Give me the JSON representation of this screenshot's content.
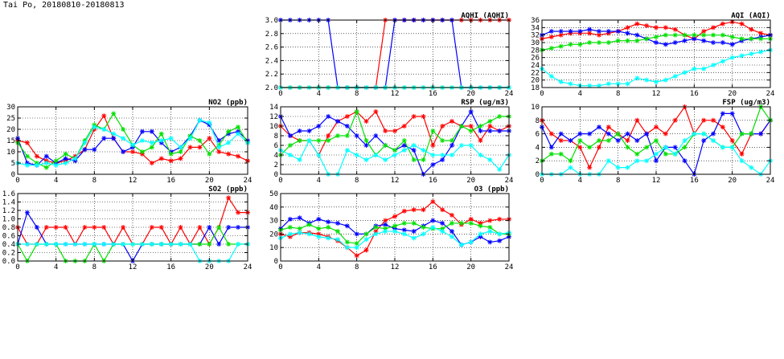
{
  "title": "Tai Po, 20180810-20180813",
  "colors": {
    "red": "#ff0000",
    "blue": "#0000ff",
    "green": "#00e000",
    "cyan": "#00ffff"
  },
  "chart_data": [
    {
      "id": "aqhi",
      "type": "line",
      "title": "AQHI (AQHI)",
      "xlim": [
        0,
        24
      ],
      "ylim": [
        2.0,
        3.0
      ],
      "xticks": [
        0,
        4,
        8,
        12,
        16,
        20,
        24
      ],
      "yticks": [
        2.0,
        2.2,
        2.4,
        2.6,
        2.8,
        3.0
      ],
      "ytick_labels": [
        "2.0",
        "2.2",
        "2.4",
        "2.6",
        "2.8",
        "3.0"
      ],
      "grid": true,
      "series": [
        {
          "color": "#ff0000",
          "values": [
            2,
            2,
            2,
            2,
            2,
            2,
            2,
            2,
            2,
            2,
            2,
            3,
            3,
            3,
            3,
            3,
            3,
            3,
            3,
            3,
            3,
            3,
            3,
            3,
            3
          ]
        },
        {
          "color": "#0000ff",
          "values": [
            3,
            3,
            3,
            3,
            3,
            3,
            2,
            2,
            2,
            2,
            2,
            2,
            3,
            3,
            3,
            3,
            3,
            3,
            3,
            2,
            2,
            2,
            2,
            2,
            2
          ]
        },
        {
          "color": "#00e000",
          "values": [
            2,
            2,
            2,
            2,
            2,
            2,
            2,
            2,
            2,
            2,
            2,
            2,
            2,
            2,
            2,
            2,
            2,
            2,
            2,
            2,
            2,
            2,
            2,
            2,
            2
          ]
        },
        {
          "color": "#00ffff",
          "values": [
            2,
            2,
            2,
            2,
            2,
            2,
            2,
            2,
            2,
            2,
            2,
            2,
            2,
            2,
            2,
            2,
            2,
            2,
            2,
            2,
            2,
            2,
            2,
            2,
            2
          ]
        }
      ]
    },
    {
      "id": "aqi",
      "type": "line",
      "title": "AQI (AQI)",
      "xlim": [
        0,
        24
      ],
      "ylim": [
        18,
        36
      ],
      "xticks": [
        0,
        4,
        8,
        12,
        16,
        20,
        24
      ],
      "yticks": [
        18,
        20,
        22,
        24,
        26,
        28,
        30,
        32,
        34,
        36
      ],
      "ytick_labels": [
        "18",
        "20",
        "22",
        "24",
        "26",
        "28",
        "30",
        "32",
        "34",
        "36"
      ],
      "grid": true,
      "series": [
        {
          "color": "#ff0000",
          "values": [
            31,
            31.5,
            32,
            32.5,
            32.5,
            32.5,
            32,
            32.5,
            33,
            34,
            35,
            34.5,
            34,
            34,
            33.5,
            32,
            31,
            33,
            34,
            35,
            35.5,
            35,
            33.5,
            32.5,
            32
          ]
        },
        {
          "color": "#0000ff",
          "values": [
            32,
            33,
            33,
            33,
            33,
            33.5,
            33,
            33,
            33,
            32.5,
            32,
            31,
            30,
            29.5,
            30,
            30.5,
            31,
            30.5,
            30,
            30,
            29.5,
            30.5,
            31,
            31.5,
            32
          ]
        },
        {
          "color": "#00e000",
          "values": [
            28,
            28.5,
            29,
            29.5,
            29.5,
            30,
            30,
            30,
            30.5,
            30.5,
            30.5,
            31,
            31.5,
            32,
            32,
            32,
            32,
            32,
            32,
            32,
            31.5,
            31,
            31,
            31,
            31
          ]
        },
        {
          "color": "#00ffff",
          "values": [
            23,
            21,
            19.5,
            19,
            18.5,
            18.5,
            18.5,
            19,
            19,
            19,
            20.5,
            20,
            19.5,
            20,
            21,
            22,
            23,
            23,
            24,
            25,
            26,
            26.5,
            27,
            27.5,
            28
          ]
        }
      ]
    },
    {
      "id": "no2",
      "type": "line",
      "title": "NO2 (ppb)",
      "xlim": [
        0,
        24
      ],
      "ylim": [
        0,
        30
      ],
      "xticks": [
        0,
        4,
        8,
        12,
        16,
        20,
        24
      ],
      "yticks": [
        0,
        5,
        10,
        15,
        20,
        25,
        30
      ],
      "ytick_labels": [
        "0",
        "5",
        "10",
        "15",
        "20",
        "25",
        "30"
      ],
      "grid": true,
      "series": [
        {
          "color": "#ff0000",
          "values": [
            15,
            14,
            8,
            6,
            5,
            6,
            8,
            11,
            20,
            26,
            16,
            10,
            10,
            9,
            5,
            7,
            6,
            7,
            12,
            12,
            16,
            10,
            9,
            8,
            6
          ]
        },
        {
          "color": "#0000ff",
          "values": [
            16,
            5,
            4,
            8,
            5,
            7,
            6,
            11,
            11,
            16,
            16,
            10,
            12,
            19,
            19,
            14,
            10,
            12,
            17,
            24,
            22,
            15,
            18,
            19,
            15
          ]
        },
        {
          "color": "#00e000",
          "values": [
            14,
            8,
            5,
            3,
            6,
            9,
            7,
            15,
            22,
            20,
            27,
            20,
            13,
            10,
            12,
            18,
            9,
            10,
            17,
            15,
            9,
            13,
            19,
            21,
            14
          ]
        },
        {
          "color": "#00ffff",
          "values": [
            5,
            4,
            4,
            5,
            4,
            5,
            7,
            14,
            21,
            20,
            18,
            16,
            13,
            15,
            14,
            15,
            16,
            12,
            16,
            24,
            23,
            12,
            14,
            18,
            14
          ]
        }
      ]
    },
    {
      "id": "rsp",
      "type": "line",
      "title": "RSP (ug/m3)",
      "xlim": [
        0,
        24
      ],
      "ylim": [
        0,
        14
      ],
      "xticks": [
        0,
        4,
        8,
        12,
        16,
        20,
        24
      ],
      "yticks": [
        0,
        2,
        4,
        6,
        8,
        10,
        12,
        14
      ],
      "ytick_labels": [
        "0",
        "2",
        "4",
        "6",
        "8",
        "10",
        "12",
        "14"
      ],
      "grid": true,
      "series": [
        {
          "color": "#ff0000",
          "values": [
            10,
            8,
            7,
            7,
            4,
            8,
            11,
            12,
            13,
            11,
            13,
            9,
            9,
            10,
            12,
            12,
            6,
            10,
            11,
            10,
            10,
            7,
            10,
            9,
            10
          ]
        },
        {
          "color": "#0000ff",
          "values": [
            12,
            8,
            9,
            9,
            10,
            12,
            11,
            10,
            8,
            6,
            8,
            6,
            5,
            6,
            5,
            0,
            2,
            3,
            6,
            10,
            13,
            9,
            9,
            9,
            9
          ]
        },
        {
          "color": "#00e000",
          "values": [
            4,
            6,
            7,
            7,
            7,
            7,
            8,
            8,
            13,
            7,
            4,
            6,
            5,
            7,
            3,
            3,
            9,
            7,
            7,
            10,
            9,
            10,
            11,
            12,
            12
          ]
        },
        {
          "color": "#00ffff",
          "values": [
            5,
            4,
            3,
            7,
            4,
            0,
            0,
            5,
            4,
            3,
            4,
            3,
            4,
            5,
            6,
            5,
            4,
            4,
            4,
            6,
            6,
            4,
            3,
            1,
            4
          ]
        }
      ]
    },
    {
      "id": "fsp",
      "type": "line",
      "title": "FSP (ug/m3)",
      "xlim": [
        0,
        24
      ],
      "ylim": [
        0,
        10
      ],
      "xticks": [
        0,
        4,
        8,
        12,
        16,
        20,
        24
      ],
      "yticks": [
        0,
        2,
        4,
        6,
        8,
        10
      ],
      "ytick_labels": [
        "0",
        "2",
        "4",
        "6",
        "8",
        "10"
      ],
      "grid": true,
      "series": [
        {
          "color": "#ff0000",
          "values": [
            8,
            6,
            5,
            5,
            4,
            1,
            4,
            7,
            6,
            5,
            8,
            6,
            7,
            6,
            8,
            10,
            6,
            8,
            8,
            7,
            5,
            3,
            6,
            6,
            8
          ]
        },
        {
          "color": "#0000ff",
          "values": [
            7,
            4,
            6,
            5,
            6,
            6,
            7,
            6,
            5,
            6,
            5,
            6,
            2,
            4,
            4,
            2,
            0,
            5,
            6,
            9,
            9,
            6,
            6,
            6,
            8
          ]
        },
        {
          "color": "#00e000",
          "values": [
            2,
            3,
            3,
            2,
            5,
            4,
            5,
            5,
            6,
            4,
            3,
            4,
            5,
            3,
            3,
            4,
            6,
            6,
            5,
            4,
            4,
            6,
            6,
            10,
            8
          ]
        },
        {
          "color": "#00ffff",
          "values": [
            0,
            0,
            0,
            1,
            0,
            0,
            0,
            2,
            1,
            1,
            2,
            2,
            3,
            4,
            3,
            5,
            6,
            6,
            5,
            4,
            4,
            2,
            1,
            0,
            2
          ]
        }
      ]
    },
    {
      "id": "so2",
      "type": "line",
      "title": "SO2 (ppb)",
      "xlim": [
        0,
        24
      ],
      "ylim": [
        0,
        1.6
      ],
      "xticks": [
        0,
        4,
        8,
        12,
        16,
        20,
        24
      ],
      "yticks": [
        0,
        0.2,
        0.4,
        0.6,
        0.8,
        1.0,
        1.2,
        1.4,
        1.6
      ],
      "ytick_labels": [
        "0.0",
        "0.2",
        "0.4",
        "0.6",
        "0.8",
        "1.0",
        "1.2",
        "1.4",
        "1.6"
      ],
      "grid": true,
      "series": [
        {
          "color": "#ff0000",
          "values": [
            0.8,
            0.4,
            0.4,
            0.8,
            0.8,
            0.8,
            0.4,
            0.8,
            0.8,
            0.8,
            0.4,
            0.8,
            0.4,
            0.4,
            0.8,
            0.8,
            0.4,
            0.8,
            0.4,
            0.8,
            0.4,
            0.8,
            1.5,
            1.15,
            1.15
          ]
        },
        {
          "color": "#0000ff",
          "values": [
            0.4,
            1.15,
            0.8,
            0.4,
            0.4,
            0.4,
            0.4,
            0.4,
            0.4,
            0.4,
            0.4,
            0.4,
            0.0,
            0.4,
            0.4,
            0.4,
            0.4,
            0.4,
            0.4,
            0.4,
            0.8,
            0.4,
            0.8,
            0.8,
            0.8
          ]
        },
        {
          "color": "#00e000",
          "values": [
            0.4,
            0.0,
            0.4,
            0.4,
            0.4,
            0.0,
            0.0,
            0.0,
            0.4,
            0.0,
            0.4,
            0.4,
            0.4,
            0.4,
            0.4,
            0.4,
            0.4,
            0.4,
            0.4,
            0.4,
            0.4,
            0.8,
            0.4,
            0.4,
            0.4
          ]
        },
        {
          "color": "#00ffff",
          "values": [
            0.4,
            0.4,
            0.4,
            0.4,
            0.4,
            0.4,
            0.4,
            0.4,
            0.4,
            0.4,
            0.4,
            0.4,
            0.4,
            0.4,
            0.4,
            0.4,
            0.4,
            0.4,
            0.4,
            0.0,
            0.0,
            0.0,
            0.0,
            0.4,
            0.4
          ]
        }
      ]
    },
    {
      "id": "o3",
      "type": "line",
      "title": "O3 (ppb)",
      "xlim": [
        0,
        24
      ],
      "ylim": [
        0,
        50
      ],
      "xticks": [
        0,
        4,
        8,
        12,
        16,
        20,
        24
      ],
      "yticks": [
        0,
        10,
        20,
        30,
        40,
        50
      ],
      "ytick_labels": [
        "0",
        "10",
        "20",
        "30",
        "40",
        "50"
      ],
      "grid": true,
      "series": [
        {
          "color": "#ff0000",
          "values": [
            20,
            18,
            21,
            21,
            20,
            18,
            15,
            10,
            4,
            8,
            22,
            30,
            33,
            37,
            38,
            38,
            44,
            38,
            34,
            27,
            31,
            28,
            30,
            31,
            31
          ]
        },
        {
          "color": "#0000ff",
          "values": [
            24,
            31,
            32,
            28,
            31,
            29,
            28,
            26,
            20,
            20,
            26,
            27,
            24,
            23,
            22,
            26,
            30,
            28,
            22,
            12,
            14,
            18,
            14,
            15,
            18
          ]
        },
        {
          "color": "#00e000",
          "values": [
            23,
            25,
            24,
            27,
            24,
            25,
            22,
            14,
            13,
            20,
            25,
            24,
            26,
            28,
            28,
            25,
            24,
            24,
            28,
            28,
            28,
            26,
            25,
            20,
            20
          ]
        },
        {
          "color": "#00ffff",
          "values": [
            17,
            20,
            21,
            20,
            18,
            17,
            16,
            10,
            10,
            16,
            20,
            22,
            22,
            20,
            17,
            20,
            25,
            22,
            18,
            12,
            14,
            20,
            22,
            20,
            21
          ]
        }
      ]
    }
  ]
}
